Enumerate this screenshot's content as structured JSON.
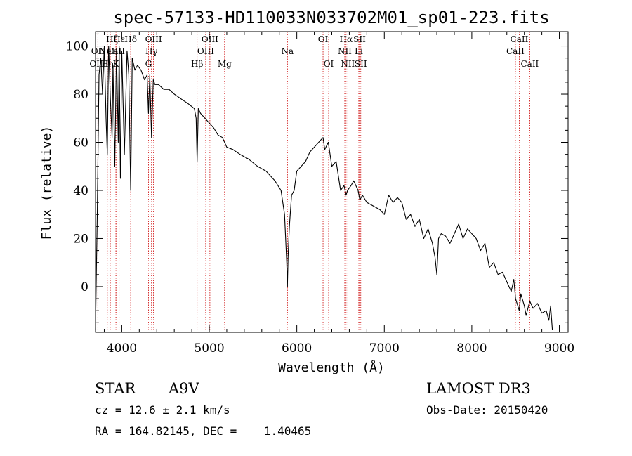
{
  "colors": {
    "axis": "#000000",
    "spectrum": "#000000",
    "line_marker": "#cc0000",
    "background": "#ffffff"
  },
  "chart_data": {
    "type": "line",
    "title": "spec-57133-HD110033N033702M01_sp01-223.fits",
    "xlabel": "Wavelength (Å)",
    "ylabel": "Flux (relative)",
    "xlim": [
      3700,
      9100
    ],
    "ylim": [
      -19,
      106
    ],
    "x_ticks": [
      4000,
      5000,
      6000,
      7000,
      8000,
      9000
    ],
    "x_tick_labels": [
      "4000",
      "5000",
      "6000",
      "7000",
      "8000",
      "9000"
    ],
    "y_ticks": [
      0,
      20,
      40,
      60,
      80,
      100
    ],
    "y_tick_labels": [
      "0",
      "20",
      "40",
      "60",
      "80",
      "100"
    ],
    "spectrum": {
      "name": "flux",
      "x": [
        3700,
        3720,
        3740,
        3760,
        3780,
        3800,
        3820,
        3835,
        3850,
        3870,
        3889,
        3900,
        3920,
        3940,
        3960,
        3970,
        3985,
        4000,
        4030,
        4060,
        4080,
        4102,
        4120,
        4150,
        4180,
        4220,
        4260,
        4290,
        4305,
        4320,
        4340,
        4360,
        4380,
        4420,
        4480,
        4540,
        4600,
        4680,
        4760,
        4830,
        4850,
        4861,
        4875,
        4900,
        4950,
        5000,
        5050,
        5100,
        5150,
        5200,
        5270,
        5350,
        5450,
        5550,
        5650,
        5750,
        5820,
        5860,
        5885,
        5893,
        5900,
        5915,
        5940,
        5970,
        6000,
        6050,
        6100,
        6150,
        6200,
        6250,
        6300,
        6320,
        6360,
        6400,
        6450,
        6500,
        6540,
        6563,
        6580,
        6620,
        6650,
        6700,
        6720,
        6750,
        6800,
        6850,
        6900,
        6950,
        7000,
        7050,
        7100,
        7150,
        7200,
        7250,
        7300,
        7350,
        7400,
        7450,
        7500,
        7550,
        7580,
        7600,
        7620,
        7650,
        7700,
        7750,
        7800,
        7850,
        7900,
        7950,
        8000,
        8050,
        8100,
        8150,
        8200,
        8250,
        8300,
        8350,
        8400,
        8450,
        8480,
        8500,
        8542,
        8560,
        8600,
        8620,
        8662,
        8700,
        8750,
        8800,
        8850,
        8880,
        8900,
        8920
      ],
      "y": [
        -18,
        30,
        88,
        95,
        80,
        100,
        70,
        55,
        100,
        78,
        62,
        92,
        50,
        98,
        60,
        100,
        45,
        98,
        55,
        98,
        88,
        40,
        95,
        90,
        92,
        90,
        86,
        88,
        72,
        88,
        62,
        86,
        84,
        84,
        82,
        82,
        80,
        78,
        76,
        74,
        70,
        52,
        74,
        72,
        70,
        68,
        66,
        63,
        62,
        58,
        57,
        55,
        53,
        50,
        48,
        44,
        40,
        30,
        10,
        0,
        12,
        25,
        38,
        40,
        48,
        50,
        52,
        56,
        58,
        60,
        62,
        57,
        60,
        50,
        52,
        40,
        42,
        38,
        40,
        42,
        44,
        40,
        36,
        38,
        35,
        34,
        33,
        32,
        30,
        38,
        35,
        37,
        35,
        28,
        30,
        25,
        28,
        20,
        24,
        18,
        12,
        5,
        20,
        22,
        21,
        18,
        22,
        26,
        20,
        24,
        22,
        20,
        15,
        18,
        8,
        10,
        5,
        6,
        2,
        -2,
        3,
        -5,
        -10,
        -3,
        -8,
        -12,
        -6,
        -9,
        -7,
        -11,
        -10,
        -14,
        -8,
        -18
      ]
    },
    "lines": [
      {
        "label": "Hζ",
        "wavelength": 3889,
        "row": 0
      },
      {
        "label": "Hε",
        "wavelength": 3970,
        "row": 0
      },
      {
        "label": "Hδ",
        "wavelength": 4102,
        "row": 0
      },
      {
        "label": "OIII",
        "wavelength": 4363,
        "row": 0
      },
      {
        "label": "OIII",
        "wavelength": 5007,
        "row": 0
      },
      {
        "label": "OI",
        "wavelength": 6300,
        "row": 0
      },
      {
        "label": "Hα",
        "wavelength": 6563,
        "row": 0
      },
      {
        "label": "SII",
        "wavelength": 6717,
        "row": 0
      },
      {
        "label": "CaII",
        "wavelength": 8542,
        "row": 0
      },
      {
        "label": "OII",
        "wavelength": 3727,
        "row": 1
      },
      {
        "label": "NeIII",
        "wavelength": 3869,
        "row": 1
      },
      {
        "label": "CaII",
        "wavelength": 3934,
        "row": 1
      },
      {
        "label": "Hγ",
        "wavelength": 4340,
        "row": 1
      },
      {
        "label": "OIII",
        "wavelength": 4959,
        "row": 1
      },
      {
        "label": "Na",
        "wavelength": 5893,
        "row": 1
      },
      {
        "label": "NII",
        "wavelength": 6548,
        "row": 1
      },
      {
        "label": "Li",
        "wavelength": 6708,
        "row": 1
      },
      {
        "label": "CaII",
        "wavelength": 8498,
        "row": 1
      },
      {
        "label": "OIII",
        "wavelength": 3727,
        "row": 2
      },
      {
        "label": "Hη",
        "wavelength": 3835,
        "row": 2
      },
      {
        "label": "K",
        "wavelength": 3934,
        "row": 2
      },
      {
        "label": "G",
        "wavelength": 4305,
        "row": 2
      },
      {
        "label": "Hβ",
        "wavelength": 4861,
        "row": 2
      },
      {
        "label": "Mg",
        "wavelength": 5175,
        "row": 2
      },
      {
        "label": "OI",
        "wavelength": 6364,
        "row": 2
      },
      {
        "label": "NII",
        "wavelength": 6583,
        "row": 2
      },
      {
        "label": "SII",
        "wavelength": 6731,
        "row": 2
      },
      {
        "label": "CaII",
        "wavelength": 8662,
        "row": 2
      }
    ]
  },
  "info": {
    "object_class": "STAR",
    "subclass": "A9V",
    "survey": "LAMOST DR3",
    "cz": "cz = 12.6 ± 2.1 km/s",
    "obs_date": "Obs-Date: 20150420",
    "coords": "RA = 164.82145, DEC =    1.40465"
  }
}
